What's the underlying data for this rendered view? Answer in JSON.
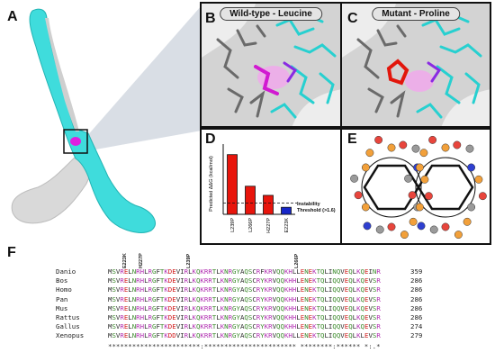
{
  "panel_labels": {
    "a": "A",
    "b": "B",
    "c": "C",
    "d": "D",
    "e": "E",
    "f": "F"
  },
  "panel_b": {
    "title": "Wild-type - Leucine"
  },
  "panel_c": {
    "title": "Mutant - Proline"
  },
  "chart_data": {
    "type": "bar",
    "categories": [
      "L239P",
      "L266P",
      "H227P",
      "E223K"
    ],
    "values": [
      8.5,
      4.0,
      2.7,
      1.0
    ],
    "colors": [
      "#e8150c",
      "#e8150c",
      "#e8150c",
      "#1626c8"
    ],
    "ylabel": "Predicted ΔΔG (kcal/mol)",
    "threshold_label": "Instability Threshold (>1.6)",
    "threshold": 1.6,
    "ylim": [
      0,
      10
    ]
  },
  "alignment": {
    "mutation_labels": [
      "E223K",
      "H227P",
      "L239P",
      "L266P"
    ],
    "rows": [
      {
        "species": "Danio",
        "seq": "MSVRELNRHLRGFTKDEVIRLKQKRRTLKNRGYAQSCRFKRVQQKHLLENEKTQLINQVEQLKQEINR",
        "count": "359"
      },
      {
        "species": "Bos",
        "seq": "MSVRELNRHLRGFTKDEVIRLKQKRRTLKNRGYAQSCRYKRVQQKHHLENEKTQLIQQVEQLKQEVSR",
        "count": "286"
      },
      {
        "species": "Homo",
        "seq": "MSVRELNRHLRGFTKDEVIRLKQKRRTLKNRGYAQSCRYKRVQQKHHLENEKTQLIQQVEQLKQEVSR",
        "count": "286"
      },
      {
        "species": "Pan",
        "seq": "MSVRELNRHLRGFTKDEVIRLKQKRRTLKNRGYAQSCRYKRVQQKHHLENEKTQLIQQVEQLKQEVSR",
        "count": "286"
      },
      {
        "species": "Mus",
        "seq": "MSVRELNRHLRGFTKDEVIRLKQKRRTLKNRGYAQSCRYKRVQQKHHLENEKTQLIQQVEQLKQEVSR",
        "count": "286"
      },
      {
        "species": "Rattus",
        "seq": "MSVRELNRHLRGFTKDEVIRLKQKRRTLKNRGYAQSCRYKRVQQKHHLENEKTQLIQQVEQLKQEVSR",
        "count": "286"
      },
      {
        "species": "Gallus",
        "seq": "MSVRELNRHLRGFTKDEVIRLKQKRRTLKNRGYAQSCRYKRVQQKHHLENEKTQLIQQVEQLKQEVSR",
        "count": "274"
      },
      {
        "species": "Xenopus",
        "seq": "MSVRELNRHLRGFTKDDVIRLKQKRRTLKNRGYAQSCRYKRVQQKHLLENEKTQLIQQVEQLKLEVSR",
        "count": "279"
      }
    ],
    "consensus": "***********************:*********************** ********:****** *:.*"
  },
  "colors": {
    "cyan": "#3fdcdc",
    "magenta": "#e020e0",
    "red": "#e8150c",
    "blue": "#1626c8"
  }
}
